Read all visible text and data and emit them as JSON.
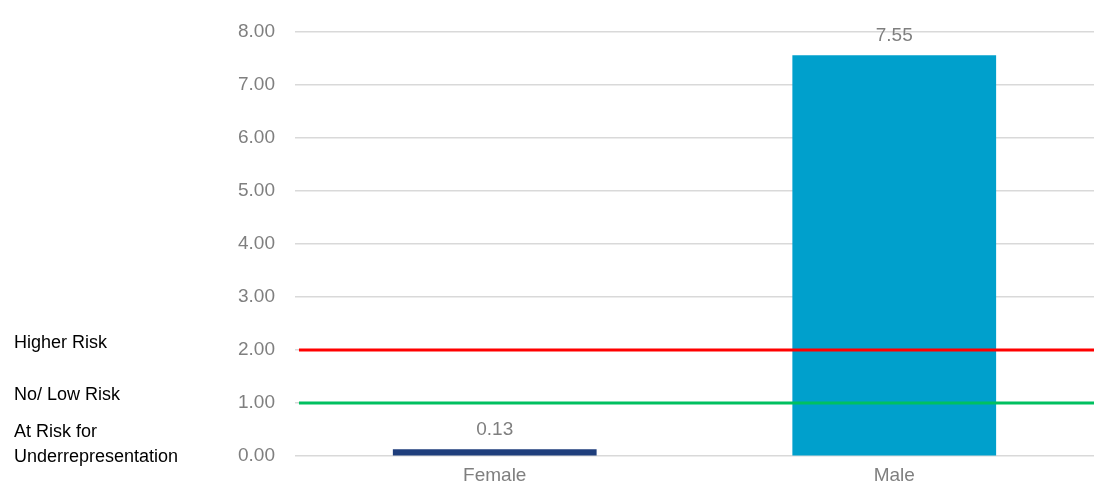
{
  "chart_data": {
    "type": "bar",
    "categories": [
      "Female",
      "Male"
    ],
    "series": [
      {
        "values": [
          0.13,
          7.55
        ],
        "colors": [
          "#1f3e7c",
          "#00a0cc"
        ]
      }
    ],
    "ylim": [
      0,
      8
    ],
    "yticks": [
      {
        "value": 0,
        "label": "0.00"
      },
      {
        "value": 1,
        "label": "1.00"
      },
      {
        "value": 2,
        "label": "2.00"
      },
      {
        "value": 3,
        "label": "3.00"
      },
      {
        "value": 4,
        "label": "4.00"
      },
      {
        "value": 5,
        "label": "5.00"
      },
      {
        "value": 6,
        "label": "6.00"
      },
      {
        "value": 7,
        "label": "7.00"
      },
      {
        "value": 8,
        "label": "8.00"
      }
    ],
    "grid": "y",
    "data_labels": true,
    "ref_lines": [
      {
        "axis": "y",
        "value": 2,
        "color": "#ff0000"
      },
      {
        "axis": "y",
        "value": 1,
        "color": "#00c060"
      }
    ],
    "annotations": [
      "Higher Risk",
      "No/ Low Risk",
      "At Risk for Underrepresentation"
    ]
  }
}
